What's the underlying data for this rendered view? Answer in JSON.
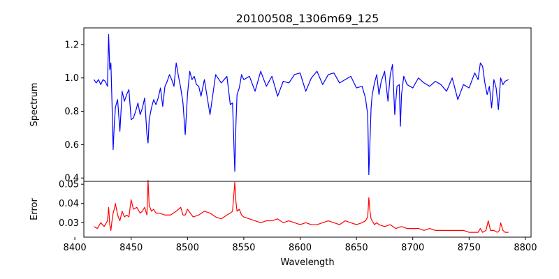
{
  "chart_data": [
    {
      "type": "line",
      "title": "20100508_1306m69_125",
      "xlabel": "",
      "ylabel": "Spectrum",
      "xlim": [
        8408,
        8805
      ],
      "ylim": [
        0.38,
        1.3
      ],
      "yticks": [
        0.4,
        0.6,
        0.8,
        1.0,
        1.2
      ],
      "ytick_labels": [
        "0.4",
        "0.6",
        "0.8",
        "1.0",
        "1.2"
      ],
      "grid": false,
      "series": [
        {
          "color": "#0000ff",
          "x": [
            8417,
            8419,
            8421,
            8423,
            8425,
            8427,
            8429,
            8430,
            8431,
            8432,
            8433,
            8434,
            8435,
            8436,
            8437,
            8438,
            8440,
            8442,
            8444,
            8446,
            8448,
            8450,
            8452,
            8454,
            8456,
            8458,
            8460,
            8462,
            8464,
            8465,
            8466,
            8468,
            8470,
            8472,
            8474,
            8476,
            8478,
            8480,
            8482,
            8484,
            8486,
            8488,
            8490,
            8492,
            8494,
            8496,
            8498,
            8500,
            8502,
            8504,
            8506,
            8508,
            8510,
            8512,
            8515,
            8520,
            8525,
            8530,
            8535,
            8538,
            8540,
            8542,
            8543,
            8544,
            8546,
            8548,
            8550,
            8555,
            8560,
            8565,
            8570,
            8575,
            8580,
            8585,
            8590,
            8595,
            8600,
            8605,
            8610,
            8615,
            8620,
            8625,
            8630,
            8635,
            8640,
            8645,
            8650,
            8655,
            8658,
            8660,
            8661,
            8662,
            8663,
            8664,
            8666,
            8668,
            8670,
            8672,
            8675,
            8678,
            8680,
            8682,
            8684,
            8686,
            8688,
            8689,
            8690,
            8692,
            8695,
            8700,
            8705,
            8710,
            8715,
            8720,
            8725,
            8730,
            8735,
            8740,
            8745,
            8750,
            8755,
            8758,
            8760,
            8762,
            8764,
            8766,
            8768,
            8770,
            8772,
            8774,
            8776,
            8778,
            8780,
            8782,
            8785
          ],
          "values": [
            0.99,
            0.97,
            0.99,
            0.96,
            0.99,
            0.98,
            0.95,
            1.26,
            1.05,
            1.09,
            0.85,
            0.57,
            0.72,
            0.82,
            0.85,
            0.87,
            0.68,
            0.92,
            0.86,
            0.9,
            0.93,
            0.75,
            0.76,
            0.8,
            0.85,
            0.78,
            0.82,
            0.88,
            0.66,
            0.61,
            0.75,
            0.82,
            0.87,
            0.84,
            0.88,
            0.94,
            0.83,
            0.95,
            0.98,
            1.02,
            0.99,
            0.95,
            1.09,
            1.01,
            0.94,
            0.85,
            0.66,
            0.9,
            1.04,
            0.99,
            1.01,
            0.96,
            0.95,
            0.89,
            0.99,
            0.78,
            1.02,
            0.97,
            1.01,
            0.84,
            0.85,
            0.44,
            0.72,
            0.9,
            0.94,
            1.02,
            0.99,
            1.01,
            0.92,
            1.04,
            0.95,
            1.01,
            0.89,
            0.98,
            0.97,
            1.02,
            1.03,
            0.92,
            1.0,
            1.04,
            0.96,
            1.02,
            1.03,
            0.97,
            0.99,
            1.01,
            0.94,
            0.95,
            0.88,
            0.78,
            0.42,
            0.62,
            0.82,
            0.9,
            0.97,
            1.02,
            0.9,
            0.98,
            1.04,
            0.86,
            1.02,
            1.08,
            0.78,
            0.95,
            0.96,
            0.71,
            0.9,
            1.01,
            0.96,
            0.94,
            1.0,
            0.97,
            0.95,
            0.98,
            0.96,
            0.92,
            1.0,
            0.87,
            0.96,
            0.94,
            1.03,
            0.99,
            1.09,
            1.07,
            0.97,
            0.9,
            0.95,
            0.82,
            0.99,
            0.94,
            0.81,
            1.0,
            0.96,
            0.98,
            0.99
          ]
        }
      ]
    },
    {
      "type": "line",
      "title": "",
      "xlabel": "Wavelength",
      "ylabel": "Error",
      "xlim": [
        8408,
        8805
      ],
      "ylim": [
        0.0225,
        0.0515
      ],
      "xticks": [
        8400,
        8450,
        8500,
        8550,
        8600,
        8650,
        8700,
        8750,
        8800
      ],
      "xtick_labels": [
        "8400",
        "8450",
        "8500",
        "8550",
        "8600",
        "8650",
        "8700",
        "8750",
        "8800"
      ],
      "yticks": [
        0.03,
        0.04,
        0.05
      ],
      "ytick_labels": [
        "0.03",
        "0.04",
        "0.05"
      ],
      "grid": false,
      "series": [
        {
          "color": "#ff0000",
          "x": [
            8417,
            8420,
            8423,
            8426,
            8429,
            8430,
            8431,
            8432,
            8433,
            8434,
            8435,
            8436,
            8438,
            8440,
            8442,
            8444,
            8446,
            8448,
            8450,
            8452,
            8455,
            8458,
            8460,
            8462,
            8464,
            8465,
            8466,
            8468,
            8470,
            8472,
            8475,
            8480,
            8485,
            8490,
            8494,
            8496,
            8498,
            8500,
            8505,
            8510,
            8515,
            8520,
            8525,
            8530,
            8535,
            8538,
            8540,
            8542,
            8543,
            8544,
            8546,
            8548,
            8550,
            8555,
            8560,
            8565,
            8570,
            8575,
            8580,
            8585,
            8590,
            8595,
            8600,
            8605,
            8610,
            8615,
            8620,
            8625,
            8630,
            8635,
            8640,
            8645,
            8650,
            8655,
            8658,
            8660,
            8661,
            8662,
            8663,
            8664,
            8666,
            8668,
            8670,
            8675,
            8680,
            8685,
            8690,
            8695,
            8700,
            8705,
            8710,
            8715,
            8720,
            8725,
            8730,
            8735,
            8740,
            8745,
            8750,
            8755,
            8758,
            8760,
            8762,
            8765,
            8767,
            8769,
            8772,
            8775,
            8777,
            8778,
            8780,
            8782,
            8785
          ],
          "values": [
            0.028,
            0.027,
            0.03,
            0.028,
            0.031,
            0.038,
            0.029,
            0.026,
            0.031,
            0.035,
            0.037,
            0.04,
            0.034,
            0.031,
            0.036,
            0.033,
            0.034,
            0.033,
            0.042,
            0.037,
            0.038,
            0.035,
            0.036,
            0.038,
            0.034,
            0.052,
            0.039,
            0.036,
            0.037,
            0.035,
            0.035,
            0.034,
            0.034,
            0.036,
            0.038,
            0.034,
            0.034,
            0.037,
            0.033,
            0.034,
            0.036,
            0.035,
            0.033,
            0.032,
            0.034,
            0.035,
            0.036,
            0.051,
            0.041,
            0.036,
            0.037,
            0.034,
            0.033,
            0.032,
            0.031,
            0.03,
            0.031,
            0.031,
            0.032,
            0.03,
            0.031,
            0.03,
            0.029,
            0.03,
            0.029,
            0.029,
            0.03,
            0.031,
            0.03,
            0.029,
            0.031,
            0.03,
            0.029,
            0.03,
            0.031,
            0.033,
            0.043,
            0.036,
            0.032,
            0.031,
            0.029,
            0.03,
            0.029,
            0.028,
            0.029,
            0.027,
            0.028,
            0.027,
            0.027,
            0.027,
            0.026,
            0.027,
            0.026,
            0.026,
            0.026,
            0.026,
            0.026,
            0.026,
            0.025,
            0.025,
            0.025,
            0.027,
            0.025,
            0.026,
            0.031,
            0.026,
            0.026,
            0.025,
            0.026,
            0.03,
            0.026,
            0.025,
            0.025
          ]
        }
      ]
    }
  ]
}
